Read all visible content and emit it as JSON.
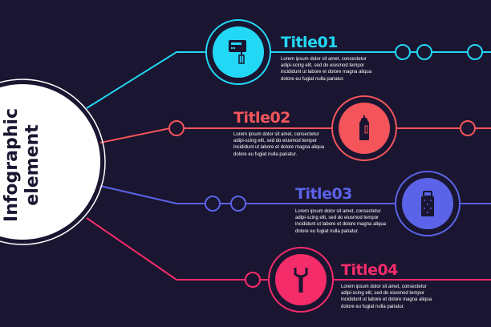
{
  "heading": {
    "line1": "Infographic",
    "line2": "element"
  },
  "colors": {
    "background": "#1a1530",
    "center": "#ffffff",
    "item1": "#22d8f5",
    "item2": "#f4555a",
    "item3": "#5b63e8",
    "item4": "#f52c6a"
  },
  "items": [
    {
      "title": "Title01",
      "icon": "hand-mixer-icon",
      "text": "Lorem ipsum dolor sit amet, consectetur adipi-scing elit, sed do eiusmod tempor incididunt ut labore et dolore magna aliqua dolore eu fugiat nulla pariatur."
    },
    {
      "title": "Title02",
      "icon": "sauce-bottle-icon",
      "text": "Lorem ipsum dolor sit amet, consectetur adipi-scing elit, sed do eiusmod tempor incididunt ut labore et dolore magna aliqua dolore eu fugiat nulla pariatur."
    },
    {
      "title": "Title03",
      "icon": "grater-icon",
      "text": "Lorem ipsum dolor sit amet, consectetur adipi-scing elit, sed do eiusmod tempor incididunt ut labore et dolore magna aliqua dolore eu fugiat nulla pariatur."
    },
    {
      "title": "Title04",
      "icon": "peeler-icon",
      "text": "Lorem ipsum dolor sit amet, consectetur adipi-scing elit, sed do eiusmod tempor incididunt ut labore et dolore magna aliqua dolore eu fugiat nulla pariatur."
    }
  ]
}
